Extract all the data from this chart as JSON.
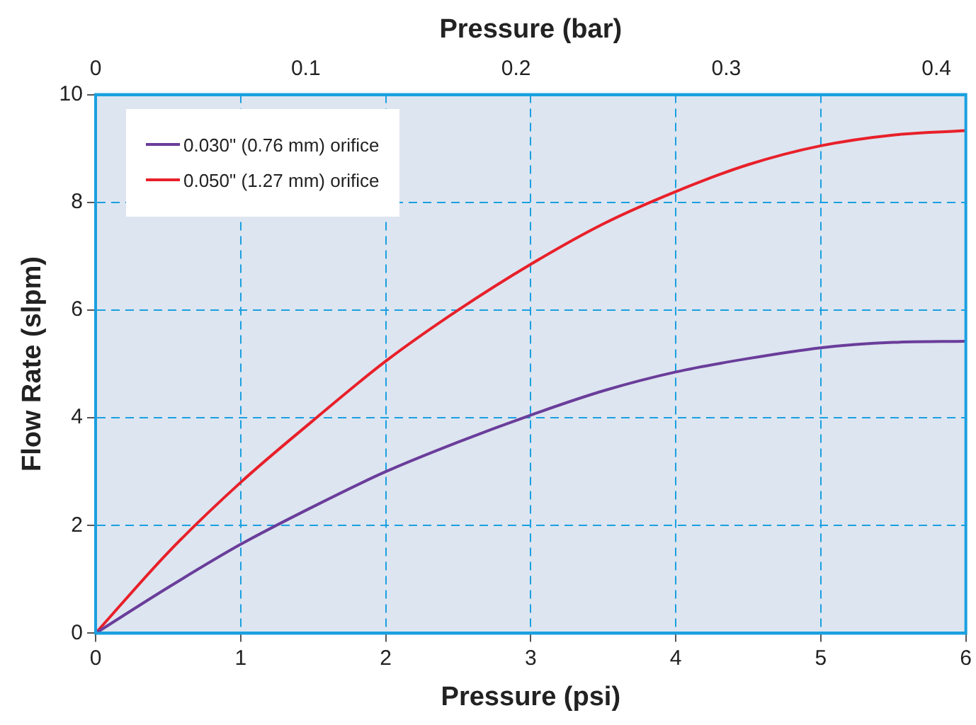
{
  "chart_data": {
    "type": "line",
    "xlabel": "Pressure (psi)",
    "ylabel": "Flow Rate (slpm)",
    "x2label": "Pressure (bar)",
    "x": [
      0,
      0.5,
      1,
      1.5,
      2,
      2.5,
      3,
      3.5,
      4,
      4.5,
      5,
      5.5,
      6
    ],
    "series": [
      {
        "name": "0.030\" (0.76 mm) orifice",
        "color": "#6a3d9a",
        "values": [
          0,
          0.85,
          1.65,
          2.35,
          3.0,
          3.55,
          4.05,
          4.5,
          4.85,
          5.1,
          5.3,
          5.4,
          5.42
        ]
      },
      {
        "name": "0.050\" (1.27 mm) orifice",
        "color": "#e8202a",
        "values": [
          0,
          1.5,
          2.8,
          3.95,
          5.05,
          6.0,
          6.85,
          7.6,
          8.2,
          8.7,
          9.05,
          9.25,
          9.33
        ]
      }
    ],
    "xlim": [
      0,
      6
    ],
    "xticks": [
      0,
      1,
      2,
      3,
      4,
      5,
      6
    ],
    "x2lim": [
      0,
      0.414
    ],
    "x2ticks": [
      0,
      0.1,
      0.2,
      0.3,
      0.4
    ],
    "ylim": [
      0,
      10
    ],
    "yticks": [
      0,
      2,
      4,
      6,
      8,
      10
    ],
    "grid": true,
    "legend": "top left",
    "marker": "none",
    "line_style": "solid"
  }
}
